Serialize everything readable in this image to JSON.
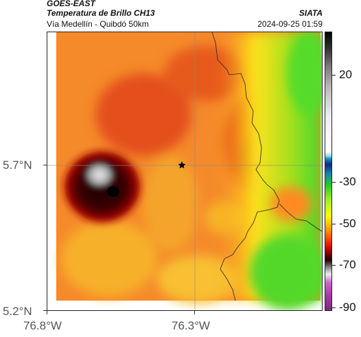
{
  "header": {
    "source": "GOES-EAST",
    "product": "Temperatura de Brillo CH13",
    "region": "Vía Medellín - Quibdó 50km",
    "org": "SIATA",
    "datetime": "2024-09-25 01:59"
  },
  "axes": {
    "lat_labels": [
      "5.7°N",
      "5.2°N"
    ],
    "lon_labels": [
      "76.8°W",
      "76.3°W"
    ]
  },
  "colorbar": {
    "labels": [
      "20",
      "-30",
      "-50",
      "-70",
      "-90"
    ]
  },
  "map": {
    "marker": "star",
    "palette": {
      "background_warm": "#f58a2a",
      "deep_red": "#b81a0a",
      "cold_cloud_top": "#1a0000",
      "overshooting_top": "#d8d8d8",
      "clear_green": "#4cdc2a"
    }
  }
}
